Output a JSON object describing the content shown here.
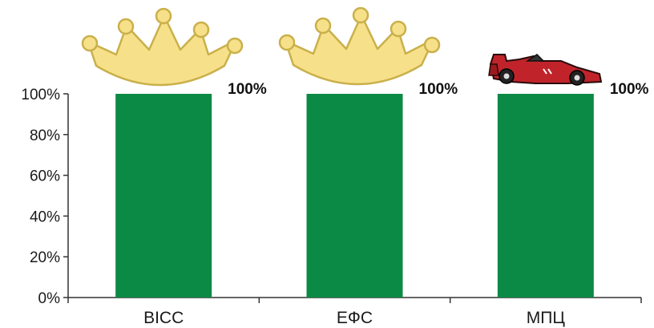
{
  "chart_data": {
    "type": "bar",
    "categories": [
      "ВІСС",
      "ЕФС",
      "МПЦ"
    ],
    "values": [
      100,
      100,
      100
    ],
    "data_labels": [
      "100%",
      "100%",
      "100%"
    ],
    "ylim": [
      0,
      100
    ],
    "yticks": [
      "0%",
      "20%",
      "40%",
      "60%",
      "80%",
      "100%"
    ],
    "title": "",
    "xlabel": "",
    "ylabel": "",
    "grid": false,
    "bar_color": "#0b8a45",
    "decorations": [
      "crown-icon",
      "crown-icon",
      "race-car-icon"
    ]
  }
}
